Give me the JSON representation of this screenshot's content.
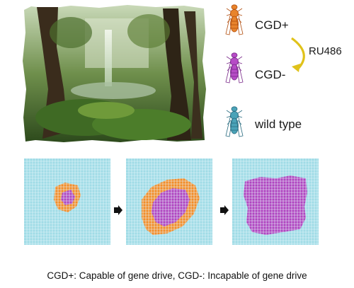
{
  "flies": [
    {
      "label": "CGD+",
      "body_color": "#e8842c",
      "line_color": "#b24f10",
      "icon": "fly-orange-icon"
    },
    {
      "label": "CGD-",
      "body_color": "#b64cc6",
      "line_color": "#7a2a8a",
      "icon": "fly-purple-icon"
    },
    {
      "label": "wild type",
      "body_color": "#4aa3b8",
      "line_color": "#2a6c80",
      "icon": "fly-blue-icon"
    }
  ],
  "conversion": {
    "label": "RU486",
    "arrow_color": "#e0c21a"
  },
  "panels": [
    {
      "id": "stage-1"
    },
    {
      "id": "stage-2"
    },
    {
      "id": "stage-3"
    }
  ],
  "colors": {
    "grid_bg": "#9fdbe6",
    "grid_line": "#e8f7fa",
    "cgd_plus": "#f28c28",
    "cgd_minus": "#b044c0"
  },
  "caption": "CGD+: Capable of gene drive, CGD-: Incapable of gene drive"
}
